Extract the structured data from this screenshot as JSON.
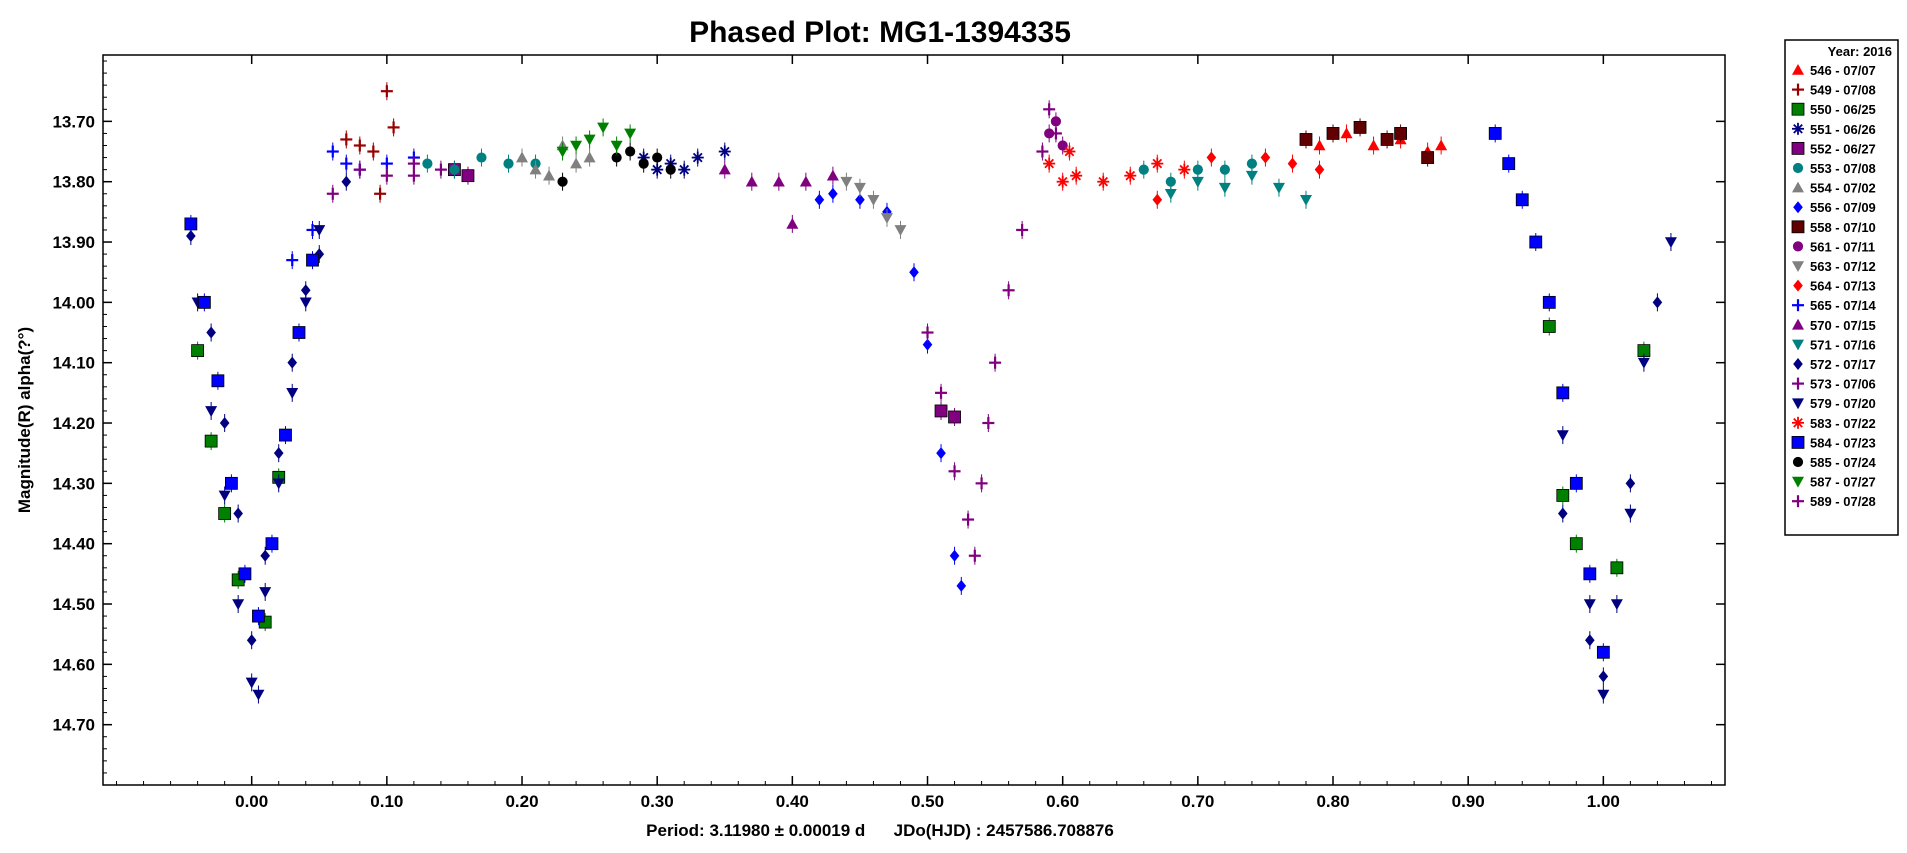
{
  "chart_data": {
    "type": "scatter",
    "title": "Phased Plot: MG1-1394335",
    "xlabel": "Period: 3.11980 ± 0.00019 d      JDo(HJD) : 2457586.708876",
    "ylabel": "Magnitude(R) alpha(?°)",
    "xlim": [
      -0.11,
      1.09
    ],
    "ylim": [
      14.8,
      13.59
    ],
    "y_inverted": true,
    "x_ticks": [
      "0.00",
      "0.10",
      "0.20",
      "0.30",
      "0.40",
      "0.50",
      "0.60",
      "0.70",
      "0.80",
      "0.90",
      "1.00"
    ],
    "y_ticks": [
      "13.70",
      "13.80",
      "13.90",
      "14.00",
      "14.10",
      "14.20",
      "14.30",
      "14.40",
      "14.50",
      "14.60",
      "14.70"
    ],
    "grid": false,
    "legend_position": "outside-right",
    "legend_title": "Year: 2016",
    "series": [
      {
        "name": "546 - 07/07",
        "marker": "triangle-up",
        "color": "#ff0000",
        "points": [
          [
            0.79,
            13.74
          ],
          [
            0.81,
            13.72
          ],
          [
            0.83,
            13.74
          ],
          [
            0.85,
            13.73
          ],
          [
            0.87,
            13.75
          ],
          [
            0.88,
            13.74
          ]
        ]
      },
      {
        "name": "549 - 07/08",
        "marker": "plus",
        "color": "#990000",
        "points": [
          [
            0.07,
            13.73
          ],
          [
            0.08,
            13.74
          ],
          [
            0.09,
            13.75
          ],
          [
            0.095,
            13.82
          ],
          [
            0.1,
            13.65
          ],
          [
            0.105,
            13.71
          ]
        ]
      },
      {
        "name": "550 - 06/25",
        "marker": "square",
        "color": "#008000",
        "points": [
          [
            -0.04,
            14.08
          ],
          [
            -0.03,
            14.23
          ],
          [
            -0.02,
            14.35
          ],
          [
            -0.01,
            14.46
          ],
          [
            0.01,
            14.53
          ],
          [
            0.02,
            14.29
          ],
          [
            0.96,
            14.04
          ],
          [
            0.97,
            14.32
          ],
          [
            0.98,
            14.4
          ],
          [
            1.01,
            14.44
          ],
          [
            1.03,
            14.08
          ]
        ]
      },
      {
        "name": "551 - 06/26",
        "marker": "asterisk",
        "color": "#000080",
        "points": [
          [
            0.29,
            13.76
          ],
          [
            0.3,
            13.78
          ],
          [
            0.31,
            13.77
          ],
          [
            0.32,
            13.78
          ],
          [
            0.33,
            13.76
          ],
          [
            0.35,
            13.75
          ]
        ]
      },
      {
        "name": "552 - 06/27",
        "marker": "square",
        "color": "#800080",
        "points": [
          [
            0.15,
            13.78
          ],
          [
            0.16,
            13.79
          ],
          [
            0.51,
            14.18
          ],
          [
            0.52,
            14.19
          ]
        ]
      },
      {
        "name": "553 - 07/08",
        "marker": "circle",
        "color": "#008080",
        "points": [
          [
            0.13,
            13.77
          ],
          [
            0.15,
            13.78
          ],
          [
            0.17,
            13.76
          ],
          [
            0.19,
            13.77
          ],
          [
            0.21,
            13.77
          ],
          [
            0.66,
            13.78
          ],
          [
            0.68,
            13.8
          ],
          [
            0.7,
            13.78
          ],
          [
            0.72,
            13.78
          ],
          [
            0.74,
            13.77
          ]
        ]
      },
      {
        "name": "554 - 07/02",
        "marker": "triangle-up",
        "color": "#808080",
        "points": [
          [
            0.2,
            13.76
          ],
          [
            0.21,
            13.78
          ],
          [
            0.22,
            13.79
          ],
          [
            0.23,
            13.74
          ],
          [
            0.24,
            13.77
          ],
          [
            0.25,
            13.76
          ]
        ]
      },
      {
        "name": "556 - 07/09",
        "marker": "diamond",
        "color": "#0000ff",
        "points": [
          [
            0.42,
            13.83
          ],
          [
            0.43,
            13.82
          ],
          [
            0.45,
            13.83
          ],
          [
            0.47,
            13.85
          ],
          [
            0.49,
            13.95
          ],
          [
            0.5,
            14.07
          ],
          [
            0.51,
            14.25
          ],
          [
            0.52,
            14.42
          ],
          [
            0.525,
            14.47
          ]
        ]
      },
      {
        "name": "558 - 07/10",
        "marker": "square",
        "color": "#600000",
        "points": [
          [
            0.78,
            13.73
          ],
          [
            0.8,
            13.72
          ],
          [
            0.82,
            13.71
          ],
          [
            0.84,
            13.73
          ],
          [
            0.85,
            13.72
          ],
          [
            0.87,
            13.76
          ]
        ]
      },
      {
        "name": "561 - 07/11",
        "marker": "circle",
        "color": "#800080",
        "points": [
          [
            0.59,
            13.72
          ],
          [
            0.595,
            13.7
          ],
          [
            0.6,
            13.74
          ]
        ]
      },
      {
        "name": "563 - 07/12",
        "marker": "triangle-down",
        "color": "#808080",
        "points": [
          [
            0.44,
            13.8
          ],
          [
            0.45,
            13.81
          ],
          [
            0.46,
            13.83
          ],
          [
            0.47,
            13.86
          ],
          [
            0.48,
            13.88
          ]
        ]
      },
      {
        "name": "564 - 07/13",
        "marker": "diamond",
        "color": "#ff0000",
        "points": [
          [
            0.67,
            13.83
          ],
          [
            0.71,
            13.76
          ],
          [
            0.75,
            13.76
          ],
          [
            0.77,
            13.77
          ],
          [
            0.79,
            13.78
          ]
        ]
      },
      {
        "name": "565 - 07/14",
        "marker": "plus",
        "color": "#0000ff",
        "points": [
          [
            0.06,
            13.75
          ],
          [
            0.07,
            13.77
          ],
          [
            0.08,
            13.78
          ],
          [
            0.1,
            13.77
          ],
          [
            0.12,
            13.76
          ],
          [
            0.03,
            13.93
          ],
          [
            0.045,
            13.88
          ]
        ]
      },
      {
        "name": "570 - 07/15",
        "marker": "triangle-up",
        "color": "#800080",
        "points": [
          [
            0.35,
            13.78
          ],
          [
            0.37,
            13.8
          ],
          [
            0.39,
            13.8
          ],
          [
            0.4,
            13.87
          ],
          [
            0.41,
            13.8
          ],
          [
            0.43,
            13.79
          ]
        ]
      },
      {
        "name": "571 - 07/16",
        "marker": "triangle-down",
        "color": "#008080",
        "points": [
          [
            0.68,
            13.82
          ],
          [
            0.7,
            13.8
          ],
          [
            0.72,
            13.81
          ],
          [
            0.74,
            13.79
          ],
          [
            0.76,
            13.81
          ],
          [
            0.78,
            13.83
          ]
        ]
      },
      {
        "name": "572 - 07/17",
        "marker": "diamond",
        "color": "#000080",
        "points": [
          [
            -0.045,
            13.89
          ],
          [
            -0.03,
            14.05
          ],
          [
            -0.02,
            14.2
          ],
          [
            -0.01,
            14.35
          ],
          [
            0.0,
            14.56
          ],
          [
            0.01,
            14.42
          ],
          [
            0.02,
            14.25
          ],
          [
            0.03,
            14.1
          ],
          [
            0.04,
            13.98
          ],
          [
            0.05,
            13.92
          ],
          [
            0.07,
            13.8
          ],
          [
            0.97,
            14.35
          ],
          [
            0.99,
            14.56
          ],
          [
            1.0,
            14.62
          ],
          [
            1.02,
            14.3
          ],
          [
            1.04,
            14.0
          ]
        ]
      },
      {
        "name": "573 - 07/06",
        "marker": "plus",
        "color": "#800080",
        "points": [
          [
            0.5,
            14.05
          ],
          [
            0.51,
            14.15
          ],
          [
            0.52,
            14.28
          ],
          [
            0.53,
            14.36
          ],
          [
            0.535,
            14.42
          ],
          [
            0.54,
            14.3
          ],
          [
            0.545,
            14.2
          ],
          [
            0.55,
            14.1
          ],
          [
            0.56,
            13.98
          ],
          [
            0.57,
            13.88
          ],
          [
            0.14,
            13.78
          ],
          [
            0.12,
            13.79
          ]
        ]
      },
      {
        "name": "579 - 07/20",
        "marker": "triangle-down",
        "color": "#000080",
        "points": [
          [
            -0.04,
            14.0
          ],
          [
            -0.03,
            14.18
          ],
          [
            -0.02,
            14.32
          ],
          [
            -0.01,
            14.5
          ],
          [
            0.0,
            14.63
          ],
          [
            0.005,
            14.65
          ],
          [
            0.01,
            14.48
          ],
          [
            0.02,
            14.3
          ],
          [
            0.03,
            14.15
          ],
          [
            0.04,
            14.0
          ],
          [
            0.05,
            13.88
          ],
          [
            0.97,
            14.22
          ],
          [
            0.99,
            14.5
          ],
          [
            1.0,
            14.65
          ],
          [
            1.01,
            14.5
          ],
          [
            1.02,
            14.35
          ],
          [
            1.03,
            14.1
          ],
          [
            1.05,
            13.9
          ]
        ]
      },
      {
        "name": "583 - 07/22",
        "marker": "asterisk",
        "color": "#ff0000",
        "points": [
          [
            0.59,
            13.77
          ],
          [
            0.6,
            13.8
          ],
          [
            0.61,
            13.79
          ],
          [
            0.63,
            13.8
          ],
          [
            0.65,
            13.79
          ],
          [
            0.67,
            13.77
          ],
          [
            0.69,
            13.78
          ],
          [
            0.605,
            13.75
          ]
        ]
      },
      {
        "name": "584 - 07/23",
        "marker": "square",
        "color": "#0000ff",
        "points": [
          [
            -0.045,
            13.87
          ],
          [
            -0.035,
            14.0
          ],
          [
            -0.025,
            14.13
          ],
          [
            -0.015,
            14.3
          ],
          [
            -0.005,
            14.45
          ],
          [
            0.005,
            14.52
          ],
          [
            0.015,
            14.4
          ],
          [
            0.025,
            14.22
          ],
          [
            0.035,
            14.05
          ],
          [
            0.045,
            13.93
          ],
          [
            0.92,
            13.72
          ],
          [
            0.93,
            13.77
          ],
          [
            0.94,
            13.83
          ],
          [
            0.95,
            13.9
          ],
          [
            0.96,
            14.0
          ],
          [
            0.97,
            14.15
          ],
          [
            0.98,
            14.3
          ],
          [
            0.99,
            14.45
          ],
          [
            1.0,
            14.58
          ]
        ]
      },
      {
        "name": "585 - 07/24",
        "marker": "circle",
        "color": "#000000",
        "points": [
          [
            0.27,
            13.76
          ],
          [
            0.28,
            13.75
          ],
          [
            0.29,
            13.77
          ],
          [
            0.3,
            13.76
          ],
          [
            0.31,
            13.78
          ],
          [
            0.23,
            13.8
          ]
        ]
      },
      {
        "name": "587 - 07/27",
        "marker": "triangle-down",
        "color": "#008000",
        "points": [
          [
            0.23,
            13.75
          ],
          [
            0.24,
            13.74
          ],
          [
            0.25,
            13.73
          ],
          [
            0.26,
            13.71
          ],
          [
            0.27,
            13.74
          ],
          [
            0.28,
            13.72
          ]
        ]
      },
      {
        "name": "589 - 07/28",
        "marker": "plus",
        "color": "#800080",
        "points": [
          [
            0.06,
            13.82
          ],
          [
            0.08,
            13.78
          ],
          [
            0.1,
            13.79
          ],
          [
            0.12,
            13.77
          ],
          [
            0.59,
            13.68
          ],
          [
            0.595,
            13.72
          ],
          [
            0.585,
            13.75
          ]
        ]
      }
    ]
  }
}
